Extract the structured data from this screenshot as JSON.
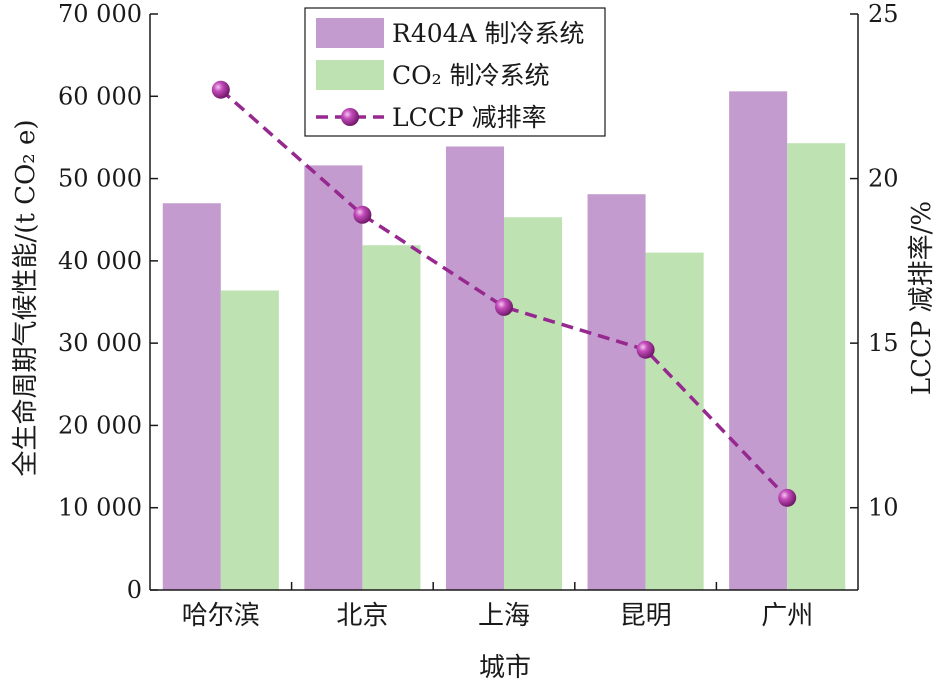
{
  "chart_data": {
    "type": "bar",
    "categories": [
      "哈尔滨",
      "北京",
      "上海",
      "昆明",
      "广州"
    ],
    "series": [
      {
        "name": "R404A 制冷系统",
        "type": "bar",
        "axis": "left",
        "color": "#c39bce",
        "values": [
          47000,
          51600,
          53900,
          48100,
          60600
        ]
      },
      {
        "name": "CO₂ 制冷系统",
        "type": "bar",
        "axis": "left",
        "color": "#bfe2b3",
        "values": [
          36400,
          41900,
          45300,
          41000,
          54300
        ]
      },
      {
        "name": "LCCP 减排率",
        "type": "line",
        "axis": "right",
        "color": "#96288f",
        "style": "dashed",
        "marker": "sphere",
        "values": [
          22.7,
          18.9,
          16.1,
          14.8,
          10.3
        ]
      }
    ],
    "xlabel": "城市",
    "ylabel": "全生命周期气候性能/(t CO₂ e)",
    "y2label": "LCCP 减排率/%",
    "ylim": [
      0,
      70000
    ],
    "y2lim": [
      7.5,
      25
    ],
    "yticks": [
      "0",
      "10 000",
      "20 000",
      "30 000",
      "40 000",
      "50 000",
      "60 000",
      "70 000"
    ],
    "yticks_values": [
      0,
      10000,
      20000,
      30000,
      40000,
      50000,
      60000,
      70000
    ],
    "y2ticks": [
      "10",
      "15",
      "20",
      "25"
    ],
    "y2ticks_values": [
      10,
      15,
      20,
      25
    ],
    "grid": false,
    "legend": "top-center"
  }
}
